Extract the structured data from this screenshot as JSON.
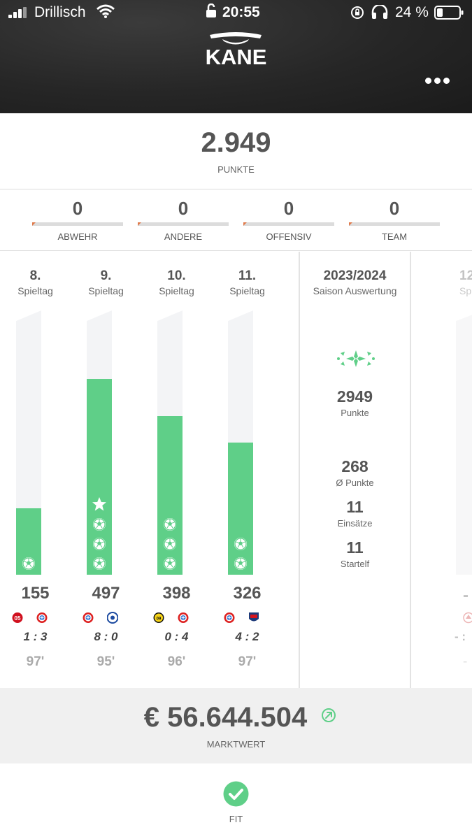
{
  "status_bar": {
    "carrier": "Drillisch",
    "time": "20:55",
    "battery": "24 %"
  },
  "header": {
    "title": "KANE"
  },
  "points": {
    "value": "2.949",
    "label": "PUNKTE"
  },
  "categories": [
    {
      "value": "0",
      "label": "ABWEHR"
    },
    {
      "value": "0",
      "label": "ANDERE"
    },
    {
      "value": "0",
      "label": "OFFENSIV"
    },
    {
      "value": "0",
      "label": "TEAM"
    }
  ],
  "matchdays": [
    {
      "num": "8.",
      "sub": "Spieltag",
      "points": "155",
      "fill": 0.25,
      "goals": 1,
      "star": false,
      "home": "mainz",
      "away": "bayern",
      "result": "1 : 3",
      "minutes": "97'"
    },
    {
      "num": "9.",
      "sub": "Spieltag",
      "points": "497",
      "fill": 0.74,
      "goals": 3,
      "star": true,
      "home": "bayern",
      "away": "darmstadt",
      "result": "8 : 0",
      "minutes": "95'"
    },
    {
      "num": "10.",
      "sub": "Spieltag",
      "points": "398",
      "fill": 0.6,
      "goals": 3,
      "star": false,
      "home": "dortmund",
      "away": "bayern",
      "result": "0 : 4",
      "minutes": "96'"
    },
    {
      "num": "11.",
      "sub": "Spieltag",
      "points": "326",
      "fill": 0.5,
      "goals": 2,
      "star": false,
      "home": "bayern",
      "away": "heidenheim",
      "result": "4 : 2",
      "minutes": "97'"
    }
  ],
  "season": {
    "year": "2023/2024",
    "sub": "Saison Auswertung",
    "stats": [
      {
        "value": "2949",
        "label": "Punkte"
      },
      {
        "value": "268",
        "label": "Ø Punkte"
      },
      {
        "value": "11",
        "label": "Einsätze"
      },
      {
        "value": "11",
        "label": "Startelf"
      }
    ]
  },
  "next_matchday": {
    "num": "12",
    "sub": "Spiel",
    "points": "-",
    "result": "- :",
    "minutes": "-"
  },
  "market": {
    "value": "€ 56.644.504",
    "label": "MARKTWERT"
  },
  "fitness": {
    "label": "FIT"
  },
  "colors": {
    "accent_green": "#5fcf88",
    "header_bg": "#262626",
    "orange_marker": "#e07a4a"
  }
}
